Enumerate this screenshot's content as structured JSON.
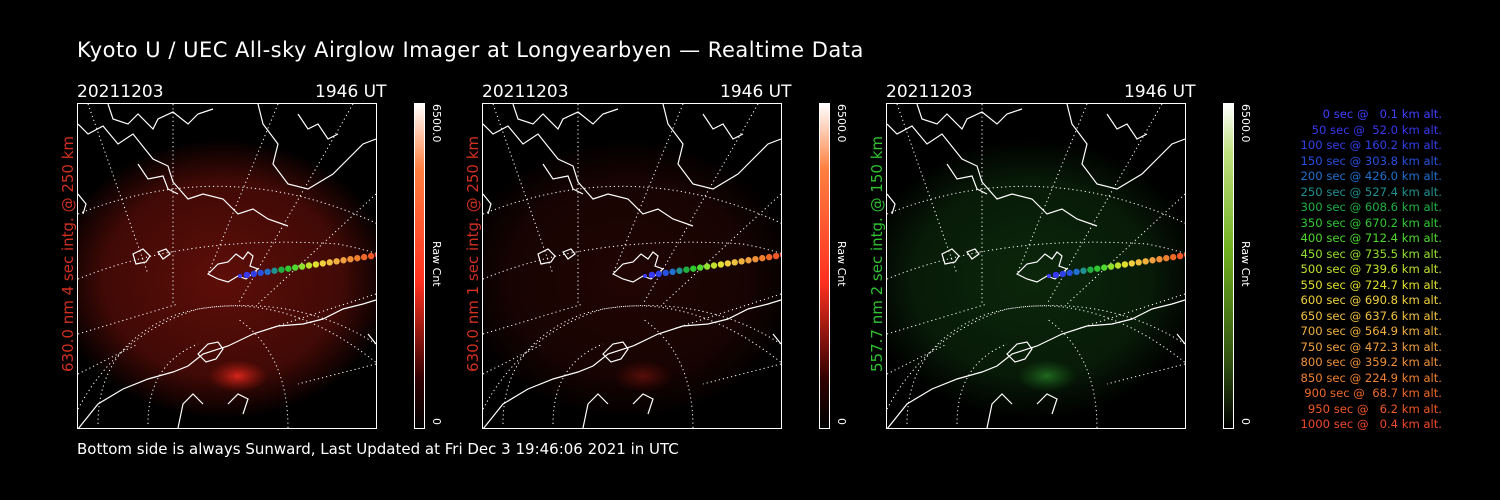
{
  "title": "Kyoto U / UEC All-sky Airglow Imager at Longyearbyen — Realtime Data",
  "panels": [
    {
      "date": "20211203",
      "time": "1946 UT",
      "side_label": "630.0 nm 4 sec intg. @ 250 km",
      "side_color": "#d03020",
      "bar_max": "6500.0",
      "bar_min": "0",
      "bar_unit": "Raw Cnt",
      "glow": "red",
      "glow_strength": 1.0
    },
    {
      "date": "20211203",
      "time": "1946 UT",
      "side_label": "630.0 nm 1 sec intg. @ 250 km",
      "side_color": "#d03020",
      "bar_max": "6500.0",
      "bar_min": "0",
      "bar_unit": "Raw Cnt",
      "glow": "red",
      "glow_strength": 0.35
    },
    {
      "date": "20211203",
      "time": "1946 UT",
      "side_label": "557.7 nm 2 sec intg. @ 150 km",
      "side_color": "#30c030",
      "bar_max": "6500.0",
      "bar_min": "0",
      "bar_unit": "Raw Cnt",
      "glow": "green",
      "glow_strength": 0.5
    }
  ],
  "legend": [
    {
      "text": "   0 sec @   0.1 km alt.",
      "color": "#4040ff"
    },
    {
      "text": "  50 sec @  52.0 km alt.",
      "color": "#3838f0"
    },
    {
      "text": " 100 sec @ 160.2 km alt.",
      "color": "#3040e8"
    },
    {
      "text": " 150 sec @ 303.8 km alt.",
      "color": "#2850e0"
    },
    {
      "text": " 200 sec @ 426.0 km alt.",
      "color": "#2070d0"
    },
    {
      "text": " 250 sec @ 527.4 km alt.",
      "color": "#209090"
    },
    {
      "text": " 300 sec @ 608.6 km alt.",
      "color": "#20b040"
    },
    {
      "text": " 350 sec @ 670.2 km alt.",
      "color": "#30c830"
    },
    {
      "text": " 400 sec @ 712.4 km alt.",
      "color": "#50d830"
    },
    {
      "text": " 450 sec @ 735.5 km alt.",
      "color": "#90e030"
    },
    {
      "text": " 500 sec @ 739.6 km alt.",
      "color": "#c0e030"
    },
    {
      "text": " 550 sec @ 724.7 km alt.",
      "color": "#e0e030"
    },
    {
      "text": " 600 sec @ 690.8 km alt.",
      "color": "#f0d040"
    },
    {
      "text": " 650 sec @ 637.6 km alt.",
      "color": "#f0c040"
    },
    {
      "text": " 700 sec @ 564.9 km alt.",
      "color": "#f0b040"
    },
    {
      "text": " 750 sec @ 472.3 km alt.",
      "color": "#f0a040"
    },
    {
      "text": " 800 sec @ 359.2 km alt.",
      "color": "#f09038"
    },
    {
      "text": " 850 sec @ 224.9 km alt.",
      "color": "#f08030"
    },
    {
      "text": " 900 sec @  68.7 km alt.",
      "color": "#f06828"
    },
    {
      "text": " 950 sec @   6.2 km alt.",
      "color": "#f05828"
    },
    {
      "text": "1000 sec @   0.4 km alt.",
      "color": "#f04828"
    }
  ],
  "footer": "Bottom side is always Sunward, Last Updated at Fri Dec  3 19:46:06 2021 in UTC"
}
